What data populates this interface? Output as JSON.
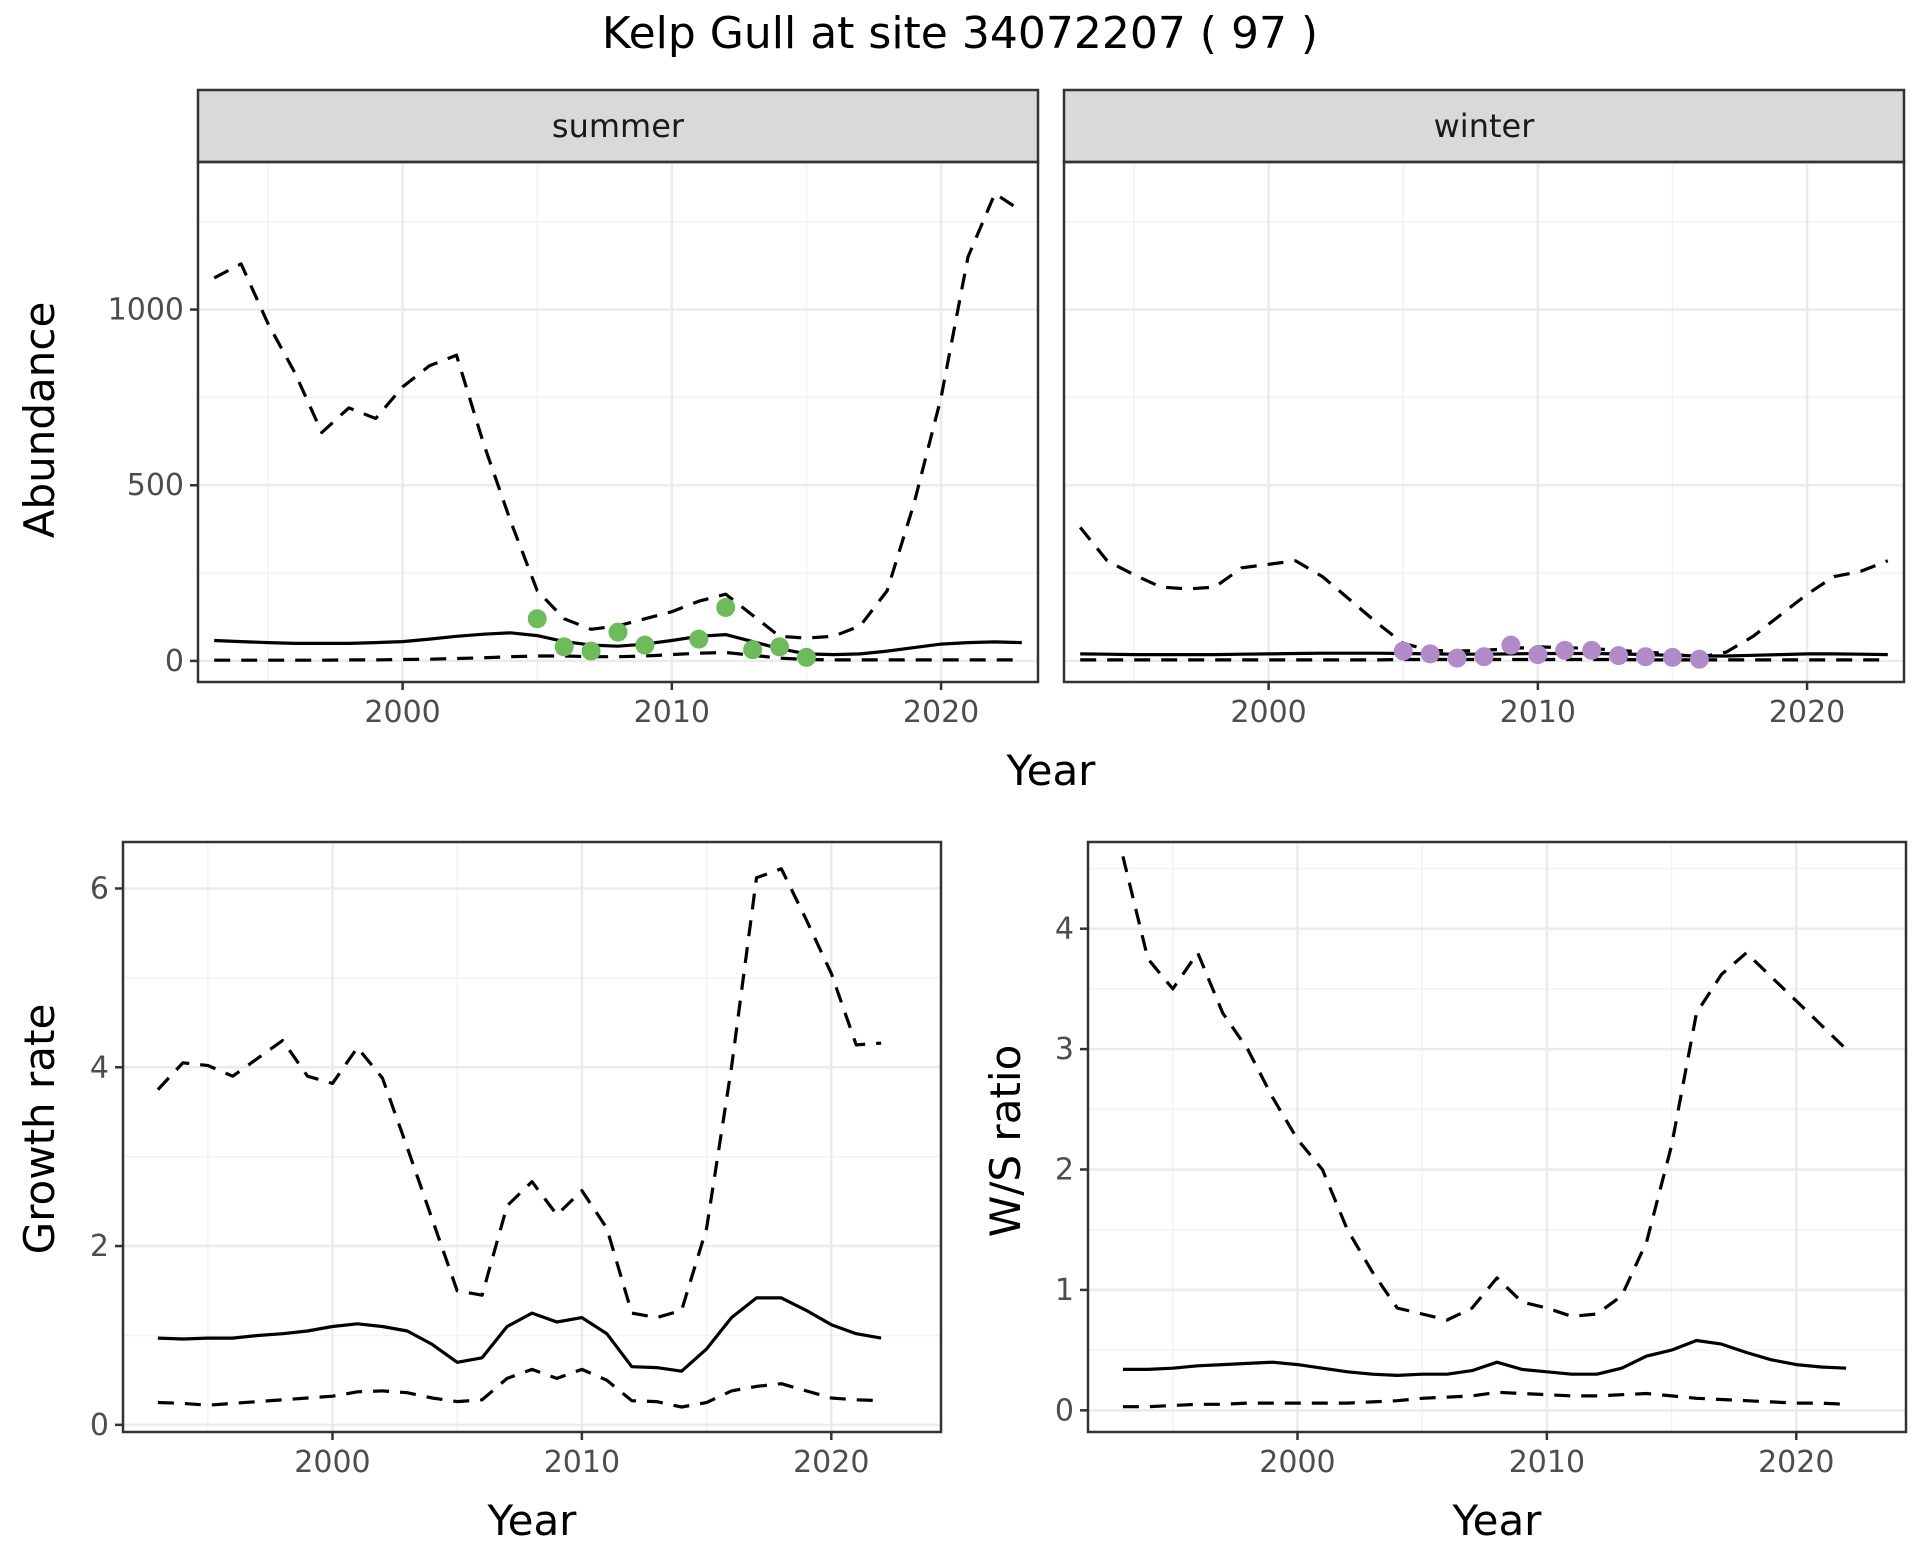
{
  "title": "Kelp Gull at site 34072207 ( 97 )",
  "colors": {
    "summer_points": "#6dbb5b",
    "winter_points": "#b18ac8"
  },
  "chart_data": [
    {
      "id": "abundance-summer",
      "type": "line",
      "facet": "summer",
      "xlabel": "Year",
      "ylabel": "Abundance",
      "xlim": [
        1992.4,
        2023.6
      ],
      "ylim": [
        -60,
        1420
      ],
      "xticks": [
        2000,
        2010,
        2020
      ],
      "yticks": [
        0,
        500,
        1000
      ],
      "grid": true,
      "x": [
        1993,
        1994,
        1995,
        1996,
        1997,
        1998,
        1999,
        2000,
        2001,
        2002,
        2003,
        2004,
        2005,
        2006,
        2007,
        2008,
        2009,
        2010,
        2011,
        2012,
        2013,
        2014,
        2015,
        2016,
        2017,
        2018,
        2019,
        2020,
        2021,
        2022,
        2023
      ],
      "series": [
        {
          "role": "upper",
          "style": "dashed",
          "values": [
            1090,
            1130,
            960,
            820,
            650,
            720,
            690,
            780,
            840,
            870,
            620,
            400,
            200,
            120,
            90,
            100,
            120,
            140,
            170,
            190,
            130,
            70,
            65,
            70,
            100,
            200,
            450,
            750,
            1150,
            1330,
            1280
          ]
        },
        {
          "role": "mean",
          "style": "solid",
          "values": [
            58,
            55,
            52,
            50,
            50,
            50,
            52,
            55,
            62,
            70,
            76,
            80,
            72,
            55,
            45,
            42,
            48,
            58,
            70,
            75,
            55,
            35,
            20,
            18,
            20,
            28,
            38,
            48,
            52,
            54,
            52
          ]
        },
        {
          "role": "lower",
          "style": "dashed",
          "values": [
            2,
            2,
            2,
            2,
            2,
            3,
            3,
            4,
            5,
            7,
            9,
            12,
            14,
            14,
            12,
            12,
            14,
            18,
            22,
            24,
            16,
            8,
            4,
            3,
            3,
            3,
            3,
            3,
            3,
            3,
            3
          ]
        }
      ],
      "points": {
        "x": [
          2005,
          2006,
          2007,
          2008,
          2009,
          2011,
          2012,
          2013,
          2014,
          2015
        ],
        "y": [
          120,
          40,
          28,
          82,
          45,
          62,
          152,
          32,
          40,
          10
        ],
        "color": "#6dbb5b"
      }
    },
    {
      "id": "abundance-winter",
      "type": "line",
      "facet": "winter",
      "xlabel": "Year",
      "ylabel": "",
      "xlim": [
        1992.4,
        2023.6
      ],
      "ylim": [
        -60,
        1420
      ],
      "xticks": [
        2000,
        2010,
        2020
      ],
      "yticks": [],
      "grid": true,
      "x": [
        1993,
        1994,
        1995,
        1996,
        1997,
        1998,
        1999,
        2000,
        2001,
        2002,
        2003,
        2004,
        2005,
        2006,
        2007,
        2008,
        2009,
        2010,
        2011,
        2012,
        2013,
        2014,
        2015,
        2016,
        2017,
        2018,
        2019,
        2020,
        2021,
        2022,
        2023
      ],
      "series": [
        {
          "role": "upper",
          "style": "dashed",
          "values": [
            380,
            285,
            245,
            210,
            205,
            210,
            265,
            275,
            285,
            240,
            175,
            110,
            50,
            30,
            28,
            30,
            35,
            40,
            38,
            35,
            30,
            25,
            20,
            10,
            25,
            70,
            130,
            190,
            240,
            255,
            285
          ]
        },
        {
          "role": "mean",
          "style": "solid",
          "values": [
            20,
            19,
            18,
            18,
            18,
            18,
            19,
            20,
            21,
            22,
            22,
            22,
            21,
            20,
            19,
            19,
            20,
            21,
            21,
            21,
            20,
            18,
            16,
            14,
            14,
            16,
            18,
            20,
            20,
            19,
            18
          ]
        },
        {
          "role": "lower",
          "style": "dashed",
          "values": [
            3,
            3,
            3,
            3,
            3,
            3,
            3,
            3,
            3,
            3,
            3,
            3,
            4,
            4,
            4,
            4,
            4,
            4,
            4,
            4,
            4,
            3,
            3,
            3,
            3,
            3,
            3,
            3,
            3,
            3,
            3
          ]
        }
      ],
      "points": {
        "x": [
          2005,
          2006,
          2007,
          2008,
          2009,
          2010,
          2011,
          2012,
          2013,
          2014,
          2015,
          2016
        ],
        "y": [
          28,
          20,
          8,
          12,
          45,
          18,
          30,
          30,
          15,
          12,
          10,
          5
        ],
        "color": "#b18ac8"
      }
    },
    {
      "id": "growth-rate",
      "type": "line",
      "xlabel": "Year",
      "ylabel": "Growth rate",
      "xlim": [
        1991.6,
        2024.4
      ],
      "ylim": [
        -0.08,
        6.52
      ],
      "xticks": [
        2000,
        2010,
        2020
      ],
      "yticks": [
        0,
        2,
        4,
        6
      ],
      "grid": true,
      "x": [
        1993,
        1994,
        1995,
        1996,
        1997,
        1998,
        1999,
        2000,
        2001,
        2002,
        2003,
        2004,
        2005,
        2006,
        2007,
        2008,
        2009,
        2010,
        2011,
        2012,
        2013,
        2014,
        2015,
        2016,
        2017,
        2018,
        2019,
        2020,
        2021,
        2022
      ],
      "series": [
        {
          "role": "upper",
          "style": "dashed",
          "values": [
            3.75,
            4.05,
            4.02,
            3.9,
            4.1,
            4.3,
            3.9,
            3.82,
            4.22,
            3.88,
            3.1,
            2.3,
            1.5,
            1.45,
            2.45,
            2.72,
            2.35,
            2.62,
            2.2,
            1.25,
            1.2,
            1.28,
            2.2,
            4.0,
            6.12,
            6.22,
            5.65,
            5.05,
            4.25,
            4.27
          ]
        },
        {
          "role": "mean",
          "style": "solid",
          "values": [
            0.97,
            0.96,
            0.97,
            0.97,
            1.0,
            1.02,
            1.05,
            1.1,
            1.13,
            1.1,
            1.05,
            0.9,
            0.7,
            0.75,
            1.1,
            1.25,
            1.15,
            1.2,
            1.02,
            0.65,
            0.64,
            0.6,
            0.85,
            1.2,
            1.42,
            1.42,
            1.28,
            1.12,
            1.02,
            0.97
          ]
        },
        {
          "role": "lower",
          "style": "dashed",
          "values": [
            0.25,
            0.24,
            0.22,
            0.24,
            0.26,
            0.28,
            0.3,
            0.32,
            0.37,
            0.38,
            0.36,
            0.3,
            0.26,
            0.28,
            0.52,
            0.62,
            0.52,
            0.62,
            0.5,
            0.27,
            0.26,
            0.2,
            0.25,
            0.38,
            0.43,
            0.46,
            0.38,
            0.3,
            0.28,
            0.27
          ]
        }
      ]
    },
    {
      "id": "ws-ratio",
      "type": "line",
      "xlabel": "Year",
      "ylabel": "W/S ratio",
      "xlim": [
        1991.6,
        2024.4
      ],
      "ylim": [
        -0.18,
        4.72
      ],
      "xticks": [
        2000,
        2010,
        2020
      ],
      "yticks": [
        0,
        1,
        2,
        3,
        4
      ],
      "grid": true,
      "x": [
        1993,
        1994,
        1995,
        1996,
        1997,
        1998,
        1999,
        2000,
        2001,
        2002,
        2003,
        2004,
        2005,
        2006,
        2007,
        2008,
        2009,
        2010,
        2011,
        2012,
        2013,
        2014,
        2015,
        2016,
        2017,
        2018,
        2019,
        2020,
        2021,
        2022
      ],
      "series": [
        {
          "role": "upper",
          "style": "dashed",
          "values": [
            4.6,
            3.75,
            3.5,
            3.8,
            3.3,
            3.0,
            2.6,
            2.25,
            2.0,
            1.5,
            1.15,
            0.85,
            0.8,
            0.75,
            0.85,
            1.1,
            0.9,
            0.85,
            0.78,
            0.8,
            0.95,
            1.4,
            2.2,
            3.3,
            3.62,
            3.8,
            3.6,
            3.4,
            3.2,
            3.0
          ]
        },
        {
          "role": "mean",
          "style": "solid",
          "values": [
            0.34,
            0.34,
            0.35,
            0.37,
            0.38,
            0.39,
            0.4,
            0.38,
            0.35,
            0.32,
            0.3,
            0.29,
            0.3,
            0.3,
            0.33,
            0.4,
            0.34,
            0.32,
            0.3,
            0.3,
            0.35,
            0.45,
            0.5,
            0.58,
            0.55,
            0.48,
            0.42,
            0.38,
            0.36,
            0.35
          ]
        },
        {
          "role": "lower",
          "style": "dashed",
          "values": [
            0.03,
            0.03,
            0.04,
            0.05,
            0.05,
            0.06,
            0.06,
            0.06,
            0.06,
            0.06,
            0.07,
            0.08,
            0.1,
            0.11,
            0.12,
            0.15,
            0.14,
            0.13,
            0.12,
            0.12,
            0.13,
            0.14,
            0.12,
            0.1,
            0.09,
            0.08,
            0.07,
            0.06,
            0.06,
            0.05
          ]
        }
      ]
    }
  ]
}
